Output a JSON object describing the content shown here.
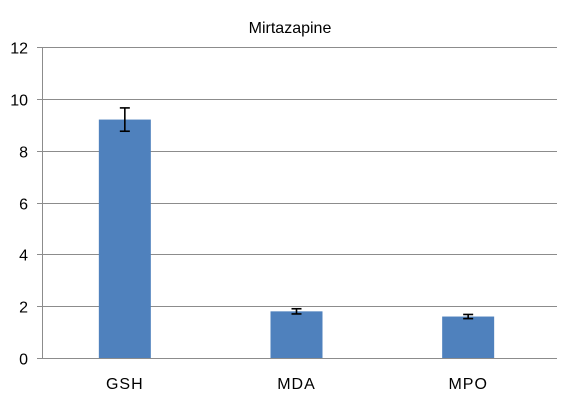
{
  "chart_data": {
    "type": "bar",
    "title": "Mirtazapine",
    "xlabel": "",
    "ylabel": "",
    "categories": [
      "GSH",
      "MDA",
      "MPO"
    ],
    "values": [
      9.2,
      1.8,
      1.6
    ],
    "error": [
      0.45,
      0.1,
      0.08
    ],
    "ylim": [
      0,
      12
    ],
    "yticks": [
      0,
      2,
      4,
      6,
      8,
      10,
      12
    ],
    "grid": true,
    "legend": "none",
    "bar_color": "#4f81bd"
  }
}
